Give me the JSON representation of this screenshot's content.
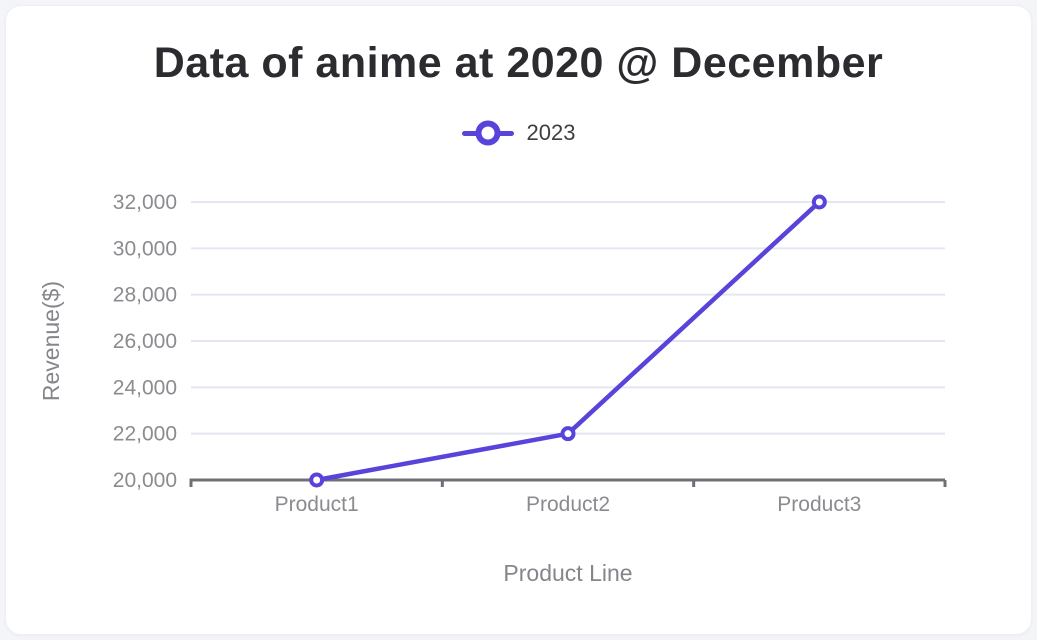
{
  "chart_data": {
    "type": "line",
    "title": "Data of anime at 2020 @ December",
    "xlabel": "Product Line",
    "ylabel": "Revenue($)",
    "categories": [
      "Product1",
      "Product2",
      "Product3"
    ],
    "series": [
      {
        "name": "2023",
        "values": [
          20000,
          22000,
          32000
        ]
      }
    ],
    "ylim": [
      20000,
      32000
    ],
    "ytick_step": 2000,
    "ytick_labels": [
      "20,000",
      "22,000",
      "24,000",
      "26,000",
      "28,000",
      "30,000",
      "32,000"
    ],
    "grid": true,
    "legend_position": "top"
  },
  "colors": {
    "accent": "#5843db",
    "gridline": "#e4e7f1",
    "axis": "#6d7076",
    "marker_fill": "#ffffff"
  }
}
